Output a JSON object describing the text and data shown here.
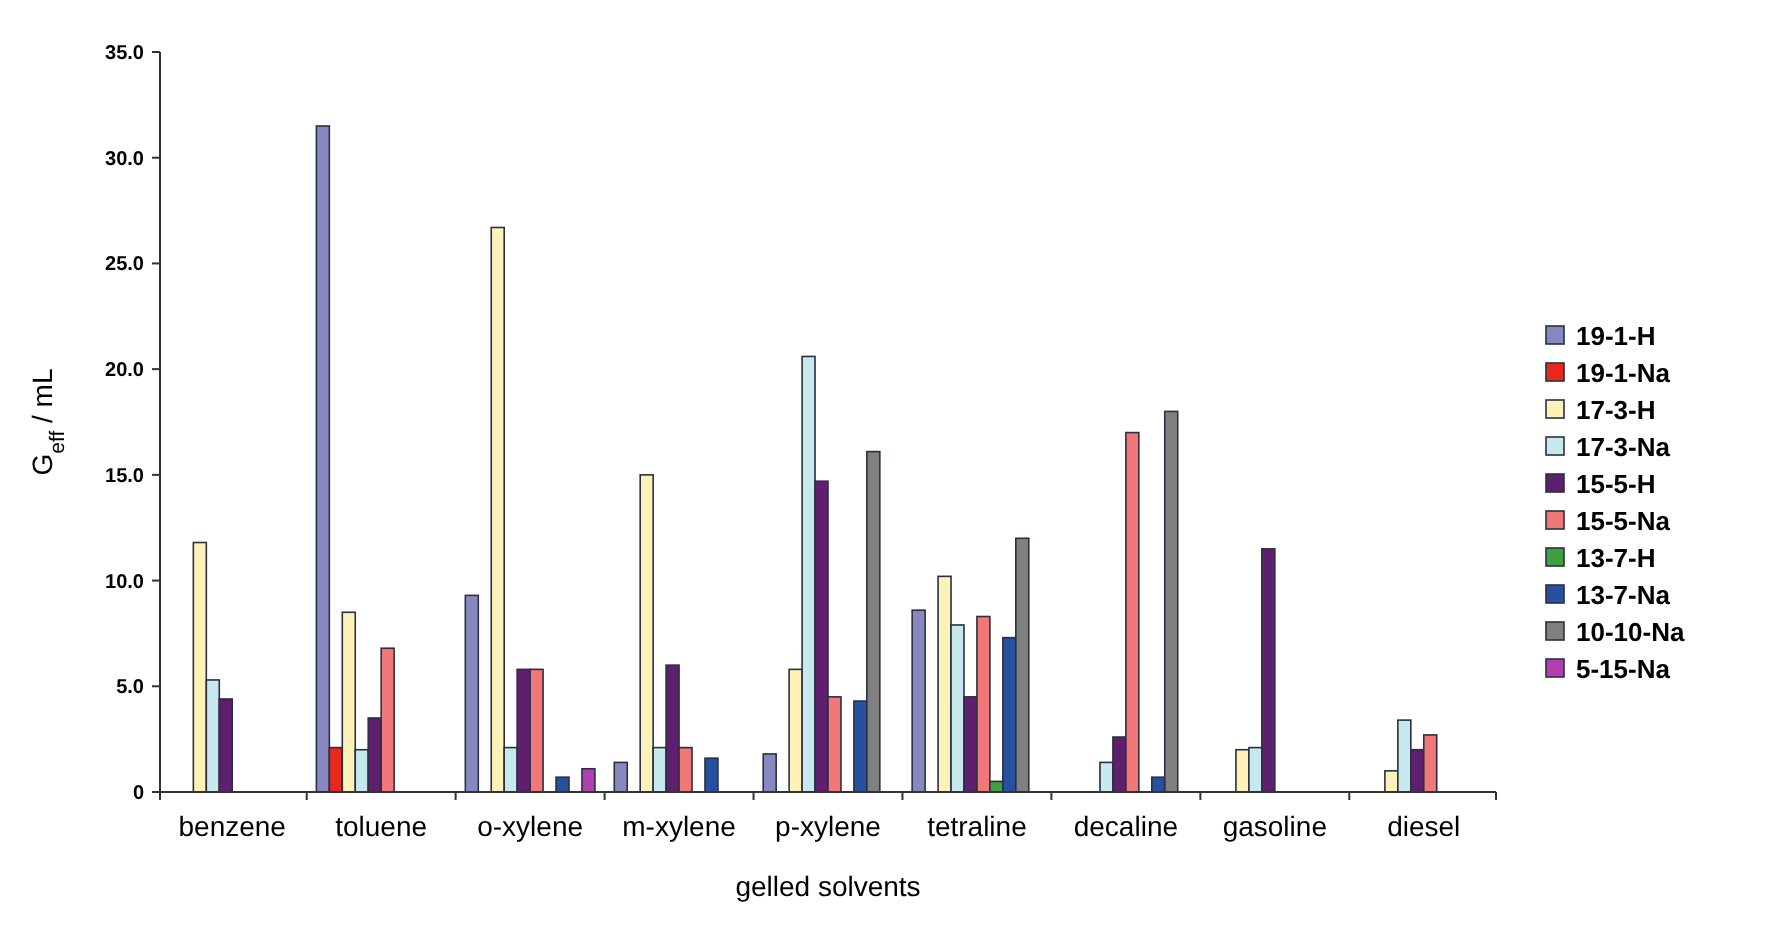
{
  "chart_data": {
    "type": "bar",
    "ylabel": "G$_{eff}$ / mL",
    "xlabel": "gelled solvents",
    "categories": [
      "benzene",
      "toluene",
      "o-xylene",
      "m-xylene",
      "p-xylene",
      "tetraline",
      "decaline",
      "gasoline",
      "diesel"
    ],
    "ylim": [
      0,
      35
    ],
    "yticks": [
      {
        "value": 0,
        "label": "0"
      },
      {
        "value": 5,
        "label": "5.0"
      },
      {
        "value": 10,
        "label": "10.0"
      },
      {
        "value": 15,
        "label": "15.0"
      },
      {
        "value": 20,
        "label": "20.0"
      },
      {
        "value": 25,
        "label": "25.0"
      },
      {
        "value": 30,
        "label": "30.0"
      },
      {
        "value": 35,
        "label": "35.0"
      }
    ],
    "grid": false,
    "legend": "right",
    "series": [
      {
        "name": "19-1-H",
        "color": "#8888c0",
        "values": [
          null,
          31.5,
          9.3,
          1.4,
          1.8,
          8.6,
          null,
          null,
          null
        ]
      },
      {
        "name": "19-1-Na",
        "color": "#e8281e",
        "values": [
          null,
          2.1,
          null,
          null,
          null,
          null,
          null,
          null,
          null
        ]
      },
      {
        "name": "17-3-H",
        "color": "#fff2b8",
        "values": [
          11.8,
          8.5,
          26.7,
          15.0,
          5.8,
          10.2,
          null,
          2.0,
          1.0
        ]
      },
      {
        "name": "17-3-Na",
        "color": "#c8e8f0",
        "values": [
          5.3,
          2.0,
          2.1,
          2.1,
          20.6,
          7.9,
          1.4,
          2.1,
          3.4
        ]
      },
      {
        "name": "15-5-H",
        "color": "#5e1f6e",
        "values": [
          4.4,
          3.5,
          5.8,
          6.0,
          14.7,
          4.5,
          2.6,
          11.5,
          2.0
        ]
      },
      {
        "name": "15-5-Na",
        "color": "#f07878",
        "values": [
          null,
          6.8,
          5.8,
          2.1,
          4.5,
          8.3,
          17.0,
          null,
          2.7
        ]
      },
      {
        "name": "13-7-H",
        "color": "#40a040",
        "values": [
          null,
          null,
          null,
          null,
          null,
          0.5,
          null,
          null,
          null
        ]
      },
      {
        "name": "13-7-Na",
        "color": "#2850a0",
        "values": [
          null,
          null,
          0.7,
          1.6,
          4.3,
          7.3,
          0.7,
          null,
          null
        ]
      },
      {
        "name": "10-10-Na",
        "color": "#808080",
        "values": [
          null,
          null,
          null,
          null,
          16.1,
          12.0,
          18.0,
          null,
          null
        ]
      },
      {
        "name": "5-15-Na",
        "color": "#b040b0",
        "values": [
          null,
          null,
          1.1,
          null,
          null,
          null,
          null,
          null,
          null
        ]
      }
    ]
  }
}
